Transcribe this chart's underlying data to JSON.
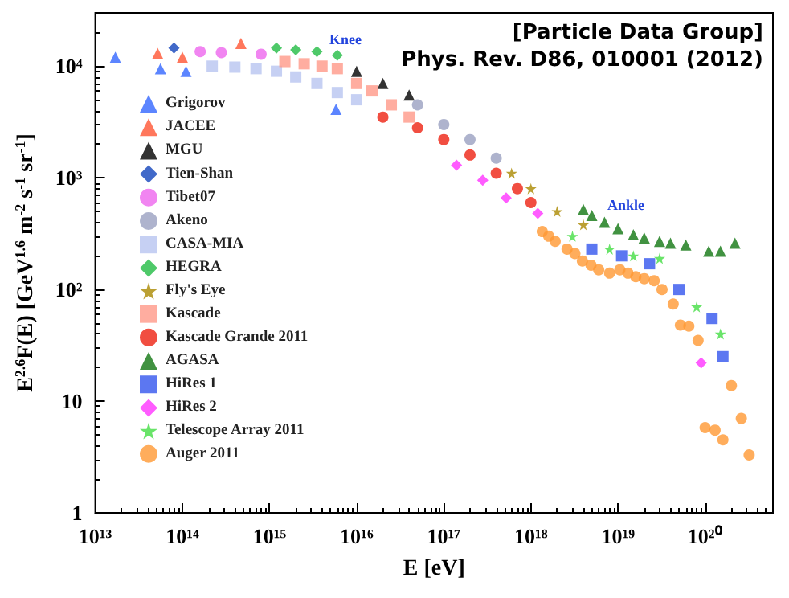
{
  "chart_data": {
    "type": "scatter",
    "xlabel": "E [eV]",
    "ylabel": "E$^{2.6}$F(E) [GeV$^{1.6}$ m$^{-2}$ s$^{-1}$ sr$^{-1}$]",
    "annotations": [
      "[Particle Data Group]",
      "Phys. Rev. D86, 010001 (2012)",
      "Knee",
      "Ankle"
    ],
    "log": "xy",
    "grid": false,
    "legend": "left",
    "xlim": [
      10000000000000.0,
      6e+20
    ],
    "ylim": [
      1,
      30000
    ],
    "xticks": [
      {
        "value": 10000000000000.0,
        "label": "10¹³"
      },
      {
        "value": 100000000000000.0,
        "label": "10¹⁴"
      },
      {
        "value": 1000000000000000.0,
        "label": "10¹⁵"
      },
      {
        "value": 1e+16,
        "label": "10¹⁶"
      },
      {
        "value": 1e+17,
        "label": "10¹⁷"
      },
      {
        "value": 1e+18,
        "label": "10¹⁸"
      },
      {
        "value": 1e+19,
        "label": "10¹⁹"
      },
      {
        "value": 1e+20,
        "label": "10²⁰"
      }
    ],
    "yticks": [
      1,
      10,
      {
        "value": 100,
        "label": "10²"
      },
      {
        "value": 1000,
        "label": "10³"
      },
      {
        "value": 10000,
        "label": "10⁴"
      }
    ],
    "series": [
      {
        "name": "Grigorov",
        "color": "#3366ff",
        "marker": "triangle",
        "x": [
          17000000000000.0,
          56000000000000.0,
          110000000000000.0,
          5800000000000000.0
        ],
        "values": [
          12000,
          9500,
          9000,
          4100
        ]
      },
      {
        "name": "JACEE",
        "color": "#ff5533",
        "marker": "triangle",
        "x": [
          52000000000000.0,
          100000000000000.0,
          470000000000000.0
        ],
        "values": [
          13000,
          12000,
          16000
        ]
      },
      {
        "name": "MGU",
        "color": "#000000",
        "marker": "triangle",
        "x": [
          1e+16,
          2e+16,
          4e+16
        ],
        "values": [
          9000,
          7000,
          5500
        ]
      },
      {
        "name": "Tien-Shan",
        "color": "#1144bb",
        "marker": "diamond",
        "x": [
          80000000000000.0
        ],
        "values": [
          14500
        ]
      },
      {
        "name": "Tibet07",
        "color": "#ee66ee",
        "marker": "circle",
        "x": [
          160000000000000.0,
          280000000000000.0,
          800000000000000.0
        ],
        "values": [
          13500,
          13200,
          12800
        ]
      },
      {
        "name": "Akeno",
        "color": "#9aa0c0",
        "marker": "circle",
        "x": [
          5e+16,
          1e+17,
          2e+17,
          4e+17
        ],
        "values": [
          4500,
          3000,
          2200,
          1500
        ]
      },
      {
        "name": "CASA-MIA",
        "color": "#b8c4f0",
        "marker": "square",
        "x": [
          220000000000000.0,
          400000000000000.0,
          700000000000000.0,
          1200000000000000.0,
          2000000000000000.0,
          3500000000000000.0,
          6000000000000000.0,
          1e+16
        ],
        "values": [
          10000,
          9800,
          9500,
          9000,
          8000,
          7000,
          5800,
          5000
        ]
      },
      {
        "name": "HEGRA",
        "color": "#22bb44",
        "marker": "diamond",
        "x": [
          1200000000000000.0,
          2000000000000000.0,
          3500000000000000.0,
          6000000000000000.0
        ],
        "values": [
          14500,
          14000,
          13500,
          12500
        ]
      },
      {
        "name": "Fly's Eye",
        "color": "#aa8800",
        "marker": "star",
        "x": [
          6e+17,
          1e+18,
          2e+18,
          4e+18
        ],
        "values": [
          1100,
          800,
          500,
          380
        ]
      },
      {
        "name": "Kascade",
        "color": "#ff9988",
        "marker": "square",
        "x": [
          1500000000000000.0,
          2500000000000000.0,
          4000000000000000.0,
          6000000000000000.0,
          1e+16,
          1.5e+16,
          2.5e+16,
          4e+16
        ],
        "values": [
          11000,
          10500,
          10000,
          9500,
          7000,
          6000,
          4500,
          3500
        ]
      },
      {
        "name": "Kascade Grande 2011",
        "color": "#ee2211",
        "marker": "circle",
        "x": [
          2e+16,
          5e+16,
          1e+17,
          2e+17,
          4e+17,
          7e+17,
          1e+18
        ],
        "values": [
          3500,
          2800,
          2200,
          1600,
          1100,
          800,
          600
        ]
      },
      {
        "name": "AGASA",
        "color": "#117711",
        "marker": "triangle",
        "x": [
          4e+18,
          5e+18,
          7e+18,
          1e+19,
          1.5e+19,
          2e+19,
          3e+19,
          4e+19,
          6e+19,
          1.1e+20,
          1.5e+20,
          2.2e+20
        ],
        "values": [
          520,
          460,
          400,
          350,
          310,
          290,
          270,
          260,
          250,
          220,
          220,
          260
        ]
      },
      {
        "name": "HiRes 1",
        "color": "#3355ee",
        "marker": "square",
        "x": [
          5e+18,
          1.1e+19,
          2.3e+19,
          5e+19,
          1.2e+20,
          1.6e+20
        ],
        "values": [
          230,
          200,
          170,
          100,
          55,
          25
        ]
      },
      {
        "name": "HiRes 2",
        "color": "#ff33ff",
        "marker": "diamond",
        "x": [
          1.4e+17,
          2.8e+17,
          5.2e+17,
          1.2e+18,
          9e+19
        ],
        "values": [
          1300,
          950,
          660,
          480,
          22
        ]
      },
      {
        "name": "Telescope Array 2011",
        "color": "#44dd44",
        "marker": "star",
        "x": [
          3e+18,
          8e+18,
          1.5e+19,
          3e+19,
          8e+19,
          1.5e+20
        ],
        "values": [
          300,
          230,
          200,
          190,
          70,
          40
        ]
      },
      {
        "name": "Auger 2011",
        "color": "#ff9933",
        "marker": "circle",
        "x": [
          1.35e+18,
          1.6e+18,
          1.9e+18,
          2.6e+18,
          3.2e+18,
          3.9e+18,
          4.9e+18,
          6e+18,
          8e+18,
          1.05e+19,
          1.3e+19,
          1.6e+19,
          2e+19,
          2.6e+19,
          3.2e+19,
          4.3e+19,
          5.2e+19,
          6.5e+19,
          8.3e+19,
          1e+20,
          1.3e+20,
          1.6e+20,
          2e+20,
          2.6e+20,
          3.2e+20
        ],
        "values": [
          330,
          300,
          270,
          230,
          210,
          180,
          165,
          150,
          140,
          150,
          140,
          130,
          125,
          120,
          100,
          74,
          48,
          47,
          35,
          5.8,
          5.5,
          4.5,
          13.8,
          7,
          3.3
        ]
      }
    ]
  }
}
